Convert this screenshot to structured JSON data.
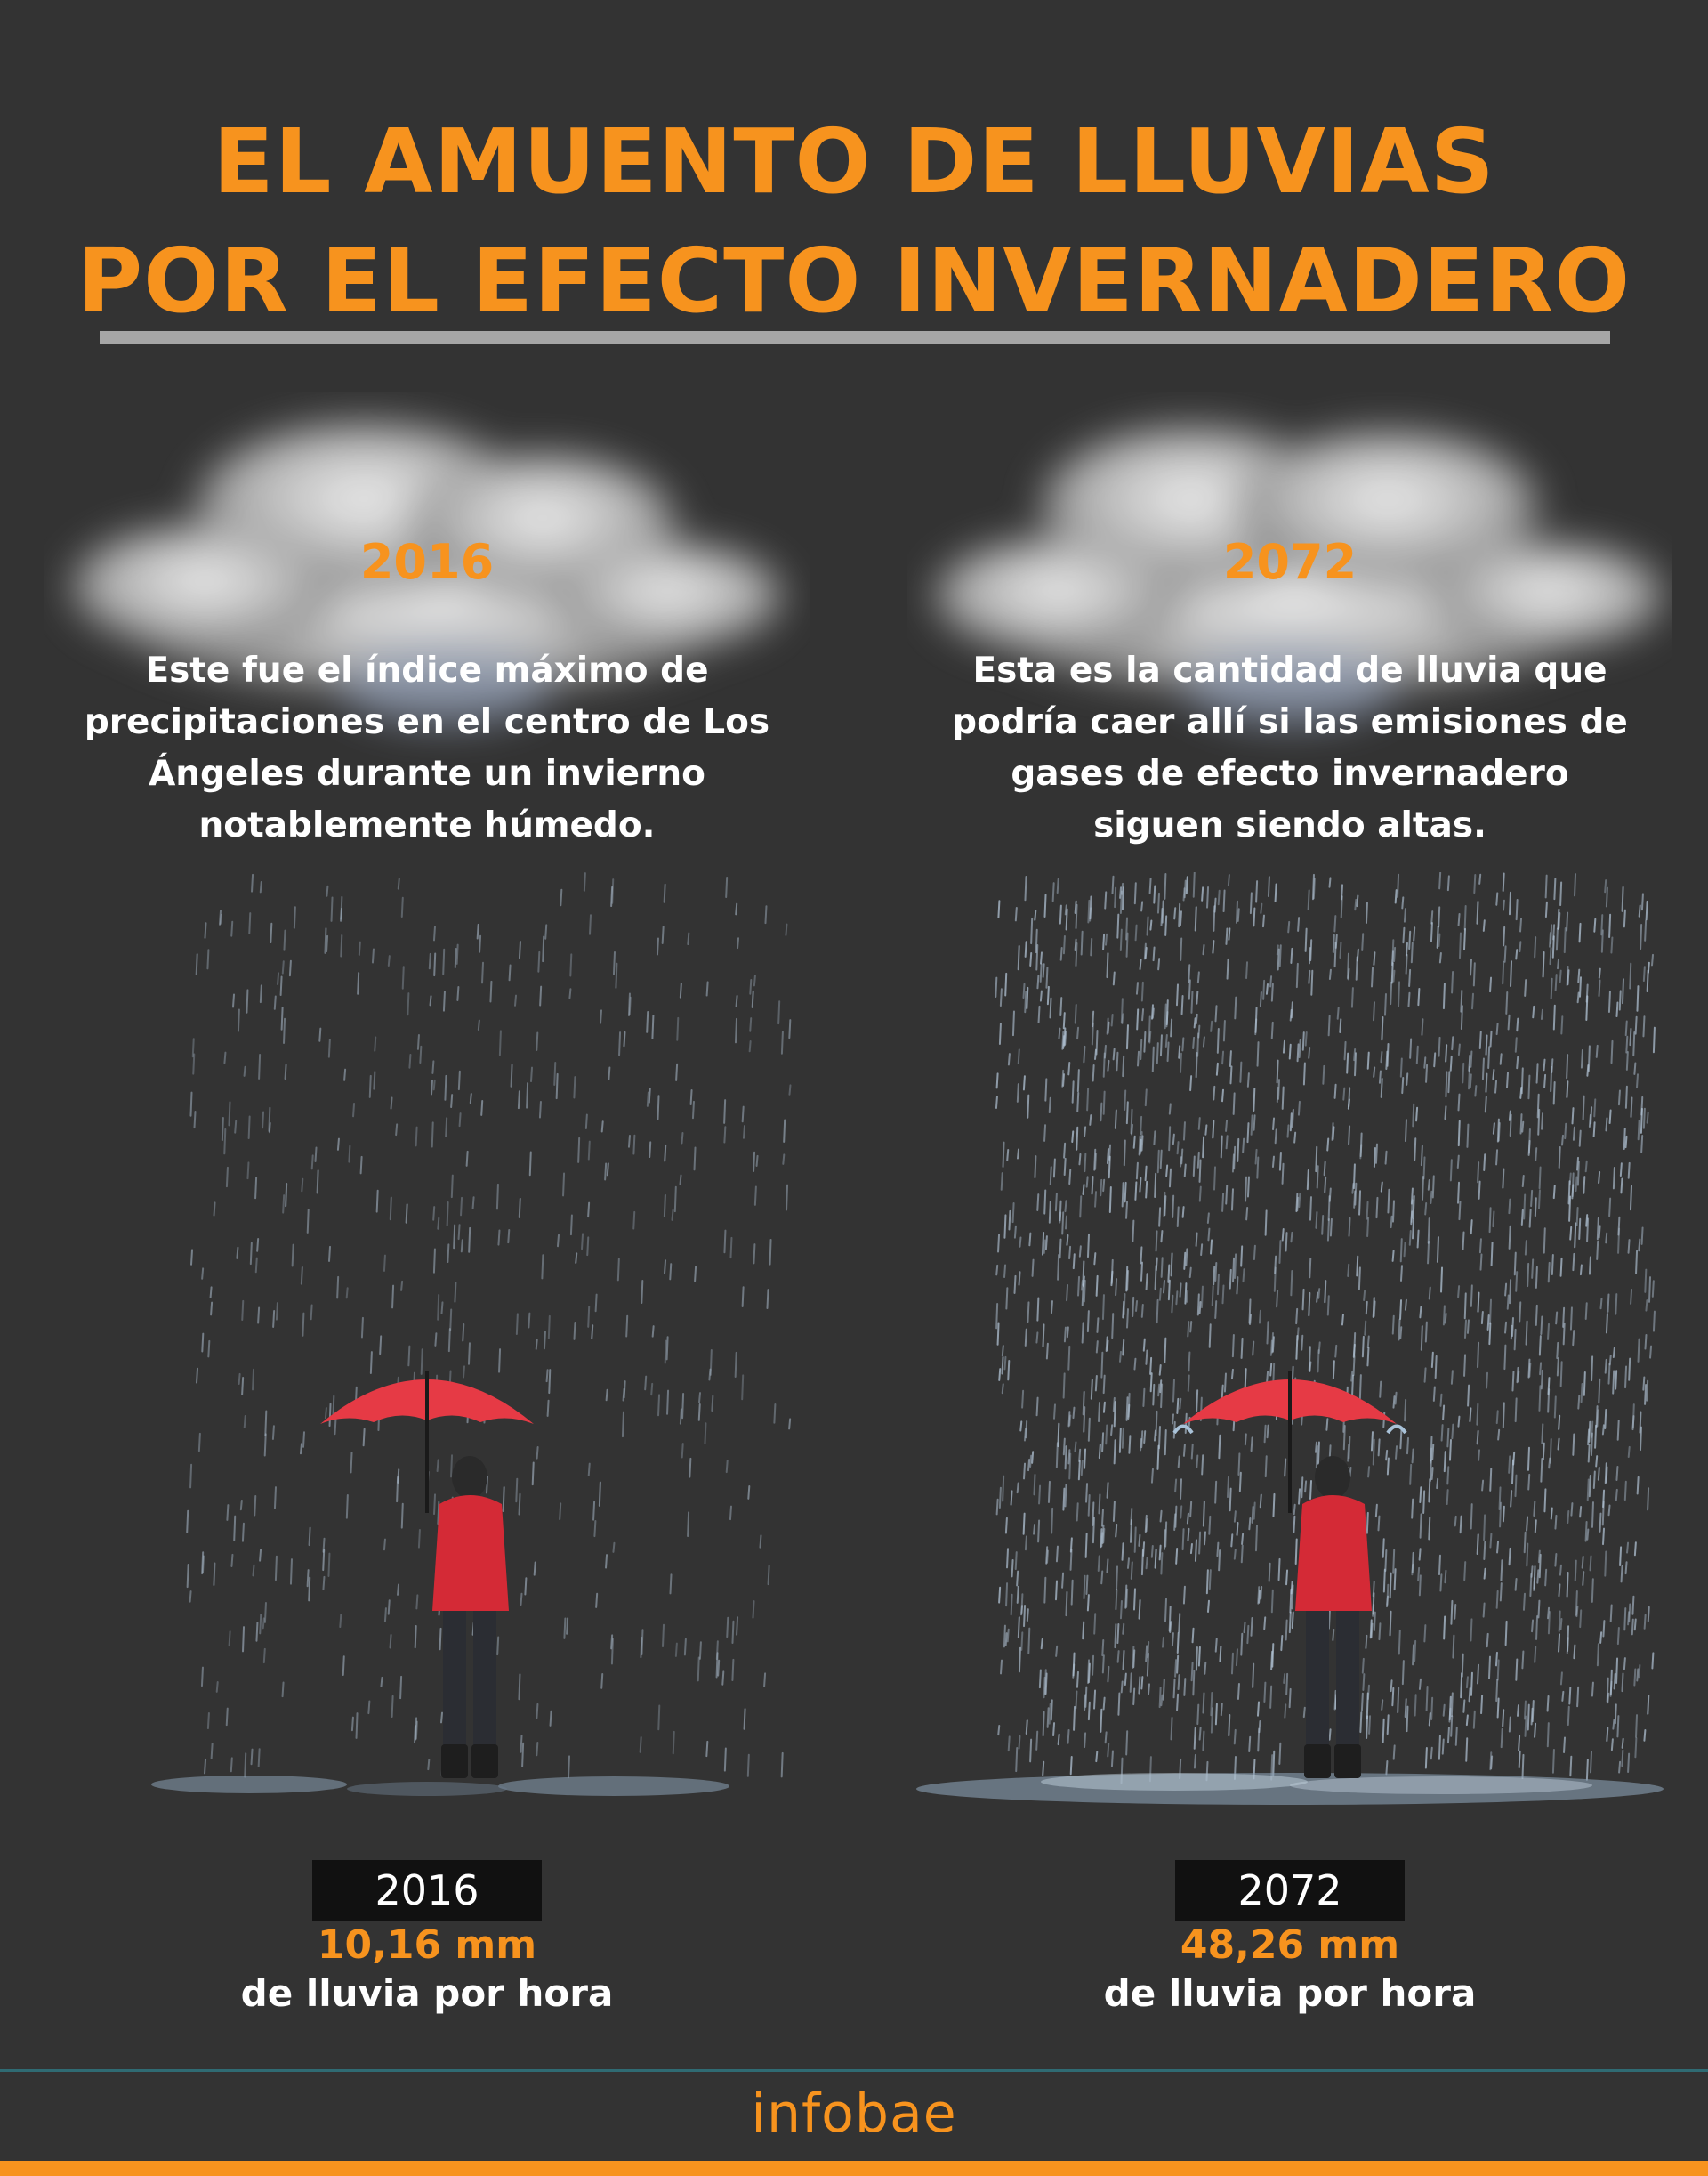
{
  "title": {
    "line1": "EL AMUENTO DE LLUVIAS",
    "line2": "POR EL EFECTO INVERNADERO"
  },
  "colors": {
    "background": "#333333",
    "accent": "#f7931e",
    "rule": "#a6a6a6"
  },
  "panels": [
    {
      "year": "2016",
      "description": "Este fue el índice máximo de precipitaciones en el centro de Los Ángeles durante un invierno notablemente húmedo.",
      "rain_intensity": "light"
    },
    {
      "year": "2072",
      "description": "Esta es la cantidad de lluvia que podría caer allí si las emisiones de gases de efecto invernadero siguen siendo altas.",
      "rain_intensity": "heavy"
    }
  ],
  "stats": [
    {
      "year": "2016",
      "amount": "10,16  mm",
      "label": "de lluvia por hora"
    },
    {
      "year": "2072",
      "amount": "48,26  mm",
      "label": "de lluvia por hora"
    }
  ],
  "footer": {
    "logo": "infobae"
  }
}
